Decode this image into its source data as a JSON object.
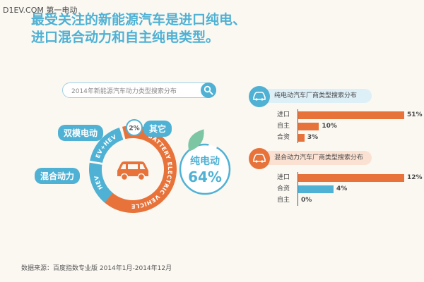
{
  "watermark": "D1EV.COM 第一电动",
  "title": {
    "line1": "最受关注的新能源汽车是进口纯电、",
    "line2": "进口混合动力和自主纯电类型。"
  },
  "search": {
    "text": "2014年新能源汽车动力类型搜索分布"
  },
  "colors": {
    "blue": "#4fb1d4",
    "orange": "#e8733a",
    "green": "#7cc6a4"
  },
  "icons": {
    "search": "search-icon",
    "car": "car-icon",
    "leaf": "leaf-icon"
  },
  "chart_data": [
    {
      "type": "pie",
      "title": "2014年新能源汽车动力类型搜索分布",
      "slices": [
        {
          "label": "纯电动",
          "ring_label": "BATTERY ELECTRIC VEHICLE",
          "value": 64
        },
        {
          "label": "混合动力",
          "ring_label": "HEV",
          "value": null
        },
        {
          "label": "双模电动",
          "ring_label": "EV+HEV",
          "value": null
        },
        {
          "label": "其它",
          "value": 2
        }
      ],
      "callout": {
        "label": "纯电动",
        "value": "64%"
      },
      "other_label": "2%"
    },
    {
      "type": "bar",
      "orientation": "horizontal",
      "title": "纯电动汽车厂商类型搜索分布",
      "categories": [
        "进口",
        "自主",
        "合资"
      ],
      "values": [
        51,
        10,
        3
      ],
      "value_labels": [
        "51%",
        "10%",
        "3%"
      ],
      "color": "#e8733a",
      "xlim": [
        0,
        51
      ]
    },
    {
      "type": "bar",
      "orientation": "horizontal",
      "title": "混合动力汽车厂商类型搜索分布",
      "categories": [
        "进口",
        "合资",
        "自主"
      ],
      "values": [
        12,
        4,
        0
      ],
      "value_labels": [
        "12%",
        "4%",
        "0%"
      ],
      "colors": [
        "#e8733a",
        "#4fb1d4",
        "#4fb1d4"
      ],
      "xlim": [
        0,
        12
      ]
    }
  ],
  "footer": "数据来源：百度指数专业版 2014年1月-2014年12月"
}
